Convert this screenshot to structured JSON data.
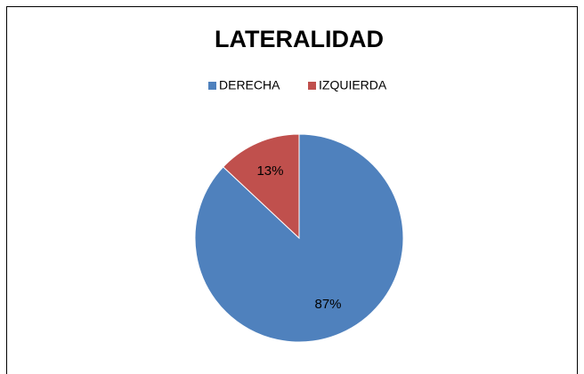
{
  "chart_data": {
    "type": "pie",
    "title": "LATERALIDAD",
    "categories": [
      "DERECHA",
      "IZQUIERDA"
    ],
    "values": [
      87,
      13
    ],
    "value_labels": [
      "87%",
      "13%"
    ],
    "colors": [
      "#4f81bd",
      "#c0504d"
    ],
    "legend": "top"
  }
}
